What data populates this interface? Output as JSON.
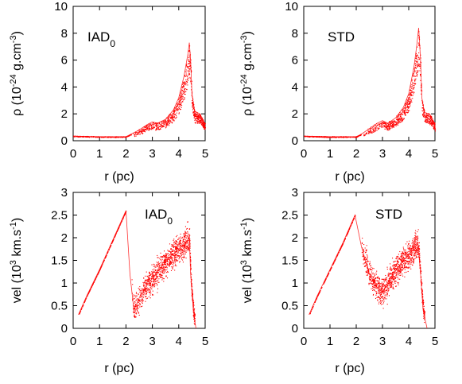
{
  "figure": {
    "background": "#ffffff",
    "point_color": "#ff0000"
  },
  "chart_data": [
    {
      "type": "scatter",
      "panel": "top-left",
      "annotation": {
        "main": "IAD",
        "sub": "0"
      },
      "xlabel": "r (pc)",
      "ylabel": {
        "main": "ρ (10",
        "sup1": "-24",
        "mid": " g.cm",
        "sup2": "-3",
        "end": ")"
      },
      "xlim": [
        0,
        5
      ],
      "ylim": [
        0,
        10
      ],
      "xticks": [
        "0",
        "1",
        "2",
        "3",
        "4",
        "5"
      ],
      "yticks": [
        "0",
        "2",
        "4",
        "6",
        "8",
        "10"
      ],
      "grid": false,
      "profile": {
        "x": [
          0.0,
          1.0,
          2.0,
          2.2,
          2.5,
          2.8,
          3.0,
          3.2,
          3.5,
          3.8,
          4.0,
          4.2,
          4.35,
          4.4,
          4.45,
          4.5,
          4.6,
          4.8,
          5.0
        ],
        "y": [
          0.35,
          0.3,
          0.3,
          0.5,
          0.8,
          1.2,
          1.4,
          1.3,
          1.6,
          2.3,
          3.2,
          4.8,
          6.5,
          7.3,
          6.0,
          3.5,
          2.2,
          2.0,
          1.2
        ]
      }
    },
    {
      "type": "scatter",
      "panel": "top-right",
      "annotation": {
        "main": "STD",
        "sub": ""
      },
      "xlabel": "r (pc)",
      "ylabel": {
        "main": "ρ (10",
        "sup1": "-24",
        "mid": " g.cm",
        "sup2": "-3",
        "end": ")"
      },
      "xlim": [
        0,
        5
      ],
      "ylim": [
        0,
        10
      ],
      "xticks": [
        "0",
        "1",
        "2",
        "3",
        "4",
        "5"
      ],
      "yticks": [
        "0",
        "2",
        "4",
        "6",
        "8",
        "10"
      ],
      "grid": false,
      "profile": {
        "x": [
          0.0,
          1.0,
          2.0,
          2.2,
          2.5,
          2.8,
          3.0,
          3.2,
          3.5,
          3.8,
          4.0,
          4.2,
          4.3,
          4.38,
          4.45,
          4.5,
          4.6,
          4.8,
          5.0
        ],
        "y": [
          0.35,
          0.3,
          0.3,
          0.5,
          0.9,
          1.3,
          1.5,
          1.3,
          1.7,
          2.5,
          3.5,
          5.5,
          7.0,
          8.4,
          6.0,
          3.2,
          2.1,
          2.0,
          1.2
        ]
      }
    },
    {
      "type": "scatter",
      "panel": "bottom-left",
      "annotation": {
        "main": "IAD",
        "sub": "0"
      },
      "xlabel": "r (pc)",
      "ylabel": {
        "main": "vel (10",
        "sup1": "3",
        "mid": " km.s",
        "sup2": "-1",
        "end": ")"
      },
      "xlim": [
        0,
        5
      ],
      "ylim": [
        0,
        3
      ],
      "xticks": [
        "0",
        "1",
        "2",
        "3",
        "4",
        "5"
      ],
      "yticks": [
        "0",
        "0.5",
        "1",
        "1.5",
        "2",
        "2.5",
        "3"
      ],
      "grid": false,
      "profile": {
        "x": [
          0.2,
          0.5,
          1.0,
          1.5,
          2.0,
          2.15,
          2.3,
          2.6,
          3.0,
          3.4,
          3.8,
          4.2,
          4.4,
          4.45,
          4.55,
          4.65
        ],
        "y": [
          0.3,
          0.7,
          1.3,
          1.95,
          2.6,
          1.2,
          0.4,
          0.8,
          1.1,
          1.4,
          1.65,
          1.85,
          2.0,
          1.2,
          0.4,
          0.0
        ]
      }
    },
    {
      "type": "scatter",
      "panel": "bottom-right",
      "annotation": {
        "main": "STD",
        "sub": ""
      },
      "xlabel": "r (pc)",
      "ylabel": {
        "main": "vel (10",
        "sup1": "3",
        "mid": " km.s",
        "sup2": "-1",
        "end": ")"
      },
      "xlim": [
        0,
        5
      ],
      "ylim": [
        0,
        3
      ],
      "xticks": [
        "0",
        "1",
        "2",
        "3",
        "4",
        "5"
      ],
      "yticks": [
        "0",
        "0.5",
        "1",
        "1.5",
        "2",
        "2.5",
        "3"
      ],
      "grid": false,
      "profile": {
        "x": [
          0.2,
          0.5,
          1.0,
          1.5,
          1.95,
          2.2,
          2.5,
          2.8,
          3.0,
          3.4,
          3.8,
          4.2,
          4.35,
          4.45,
          4.55,
          4.7
        ],
        "y": [
          0.3,
          0.7,
          1.3,
          1.9,
          2.5,
          1.8,
          1.2,
          0.9,
          0.8,
          1.2,
          1.5,
          1.75,
          1.9,
          1.2,
          0.4,
          0.0
        ]
      }
    }
  ]
}
